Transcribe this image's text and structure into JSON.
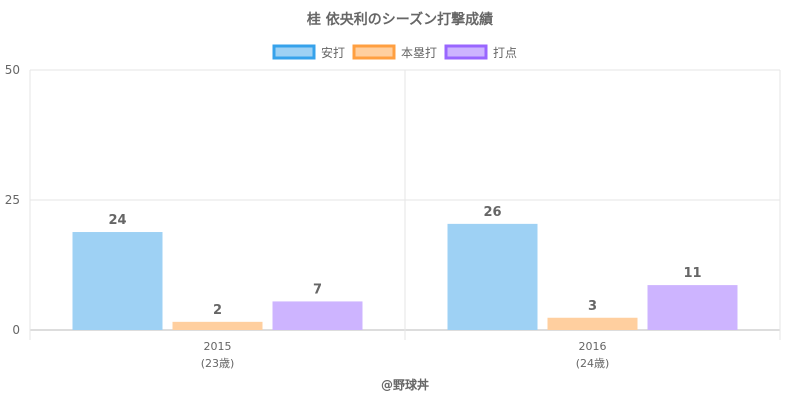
{
  "chart_data": {
    "type": "bar",
    "title": "桂 依央利のシーズン打撃成績",
    "categories": [
      "2015",
      "2016"
    ],
    "category_sublabels": [
      "(23歳)",
      "(24歳)"
    ],
    "series": [
      {
        "name": "安打",
        "values": [
          24,
          26
        ],
        "fill": "#9ed1f4",
        "stroke": "#36a2eb"
      },
      {
        "name": "本塁打",
        "values": [
          2,
          3
        ],
        "fill": "#ffcf9f",
        "stroke": "#ff9f40"
      },
      {
        "name": "打点",
        "values": [
          7,
          11
        ],
        "fill": "#cdb4ff",
        "stroke": "#9966ff"
      }
    ],
    "y_display_range": [
      0,
      50
    ],
    "y_ticks": [
      "0",
      "25",
      "50"
    ],
    "legend_position": "top-center",
    "grid": true
  },
  "credit": "@野球丼"
}
